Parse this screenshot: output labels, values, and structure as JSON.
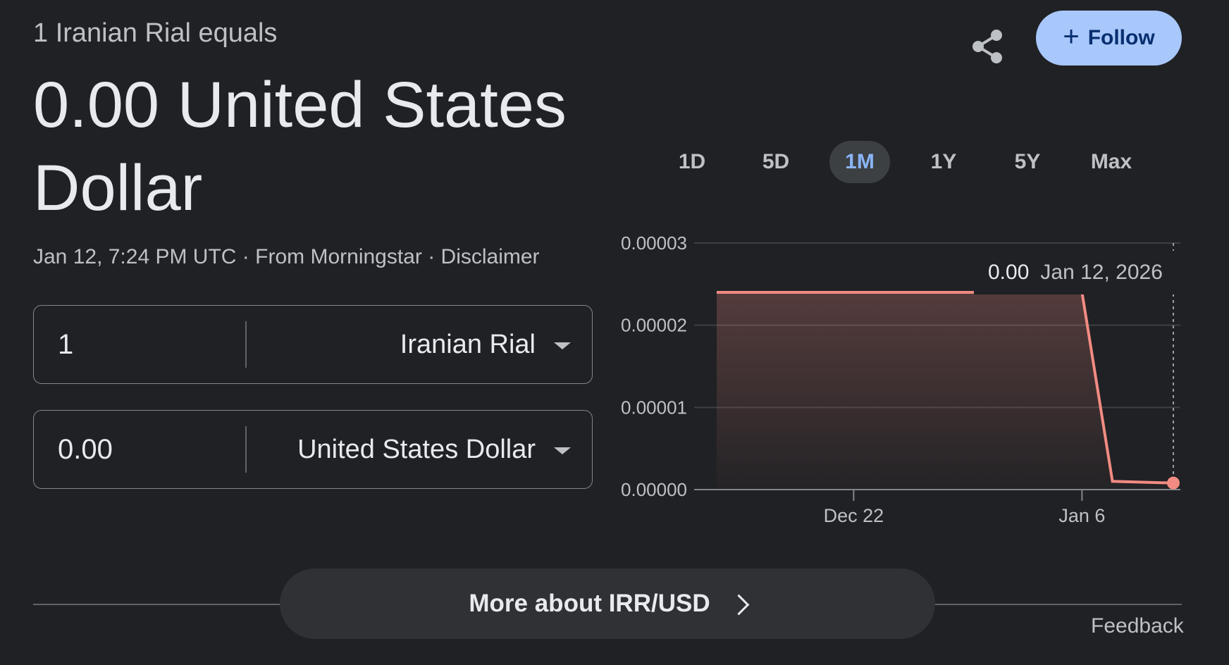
{
  "header": {
    "subtitle": "1 Iranian Rial equals",
    "value": "0.00 United States Dollar",
    "timestamp": "Jan 12, 7:24 PM UTC",
    "source": "From Morningstar",
    "separator": " · ",
    "disclaimer": "Disclaimer"
  },
  "actions": {
    "share_icon": "share-icon",
    "follow_label": "Follow",
    "follow_icon": "plus-icon"
  },
  "converter": {
    "from_amount": "1",
    "from_currency": "Iranian Rial",
    "to_amount": "0.00",
    "to_currency": "United States Dollar"
  },
  "ranges": [
    "1D",
    "5D",
    "1M",
    "1Y",
    "5Y",
    "Max"
  ],
  "active_range": "1M",
  "chart_data": {
    "type": "area",
    "x": [
      "Dec 13",
      "Dec 22",
      "Jan 6",
      "Jan 8",
      "Jan 12"
    ],
    "values": [
      2.4e-05,
      2.4e-05,
      2.4e-05,
      1e-06,
      8e-07
    ],
    "xticks": [
      "Dec 22",
      "Jan 6"
    ],
    "yticks": [
      "0.00003",
      "0.00002",
      "0.00001",
      "0.00000"
    ],
    "ylim": [
      0,
      3e-05
    ],
    "line_color": "#f28b82",
    "grid": true,
    "tooltip": {
      "value": "0.00",
      "date": "Jan 12, 2026"
    }
  },
  "footer": {
    "more_label": "More about IRR/USD",
    "feedback_label": "Feedback"
  },
  "colors": {
    "background": "#202124",
    "accent": "#a8c7fa",
    "line": "#f28b82",
    "active_range_text": "#8ab4f8"
  }
}
